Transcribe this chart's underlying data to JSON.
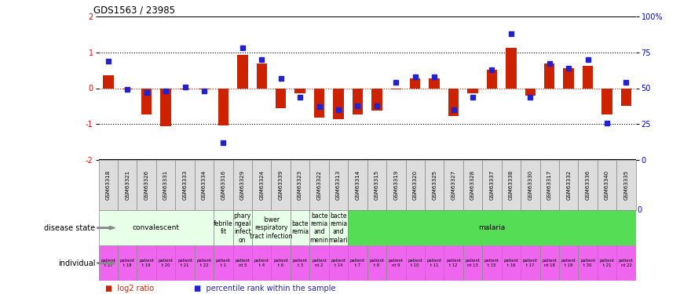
{
  "title": "GDS1563 / 23985",
  "samples": [
    "GSM63318",
    "GSM63321",
    "GSM63326",
    "GSM63331",
    "GSM63333",
    "GSM63334",
    "GSM63316",
    "GSM63329",
    "GSM63324",
    "GSM63339",
    "GSM63323",
    "GSM63322",
    "GSM63313",
    "GSM63314",
    "GSM63315",
    "GSM63319",
    "GSM63320",
    "GSM63325",
    "GSM63327",
    "GSM63328",
    "GSM63337",
    "GSM63338",
    "GSM63330",
    "GSM63317",
    "GSM63332",
    "GSM63336",
    "GSM63340",
    "GSM63335"
  ],
  "log2_ratio": [
    0.35,
    -0.04,
    -0.72,
    -1.05,
    -0.04,
    -0.04,
    -1.03,
    0.92,
    0.68,
    -0.55,
    -0.14,
    -0.82,
    -0.87,
    -0.73,
    -0.62,
    -0.03,
    0.28,
    0.28,
    -0.78,
    -0.14,
    0.52,
    1.12,
    -0.2,
    0.68,
    0.55,
    0.62,
    -0.72,
    -0.5
  ],
  "percentile_rank": [
    69,
    49,
    47,
    48,
    51,
    48,
    12,
    78,
    70,
    57,
    44,
    37,
    35,
    38,
    38,
    54,
    58,
    58,
    35,
    44,
    63,
    88,
    44,
    67,
    64,
    70,
    26,
    54
  ],
  "disease_groups": [
    {
      "label": "convalescent",
      "start": 0,
      "end": 5,
      "color": "#e8ffe8"
    },
    {
      "label": "febrile\nfit",
      "start": 6,
      "end": 6,
      "color": "#e8ffe8"
    },
    {
      "label": "phary\nngeal\ninfect\non",
      "start": 7,
      "end": 7,
      "color": "#e8ffe8"
    },
    {
      "label": "lower\nrespiratory\ntract infection",
      "start": 8,
      "end": 9,
      "color": "#e8ffe8"
    },
    {
      "label": "bacte\nremia",
      "start": 10,
      "end": 10,
      "color": "#e8ffe8"
    },
    {
      "label": "bacte\nremia\nand\nmenin",
      "start": 11,
      "end": 11,
      "color": "#e8ffe8"
    },
    {
      "label": "bacte\nremia\nand\nmalari",
      "start": 12,
      "end": 12,
      "color": "#e8ffe8"
    },
    {
      "label": "malaria",
      "start": 13,
      "end": 27,
      "color": "#55dd55"
    }
  ],
  "individual_labels": [
    "patient\nt 17",
    "patient\nt 18",
    "patient\nt 19",
    "patient\nt 20",
    "patient\nt 21",
    "patient\nt 22",
    "patient\nt 1",
    "patient\nnt 5",
    "patient\nt 4",
    "patient\nt 6",
    "patient\nt 3",
    "patient\nnt 2",
    "patient\nt 14",
    "patient\nt 7",
    "patient\nt 8",
    "patient\nnt 9",
    "patient\nt 10",
    "patient\nt 11",
    "patient\nt 12",
    "patient\nnt 13",
    "patient\nt 15",
    "patient\nt 16",
    "patient\nt 17",
    "patient\nnt 18",
    "patient\nt 19",
    "patient\nt 20",
    "patient\nt 21",
    "patient\nnt 22"
  ],
  "bar_color": "#cc2200",
  "dot_color": "#2222cc",
  "individual_color": "#ee66ee",
  "sample_box_color": "#dddddd",
  "ylim_left": [
    -2,
    2
  ],
  "ylim_right": [
    0,
    100
  ],
  "yticks_left": [
    -2,
    -1,
    0,
    1,
    2
  ],
  "yticks_right": [
    0,
    25,
    50,
    75,
    100
  ],
  "ytick_labels_right": [
    "0",
    "25",
    "50",
    "75",
    "100%"
  ]
}
